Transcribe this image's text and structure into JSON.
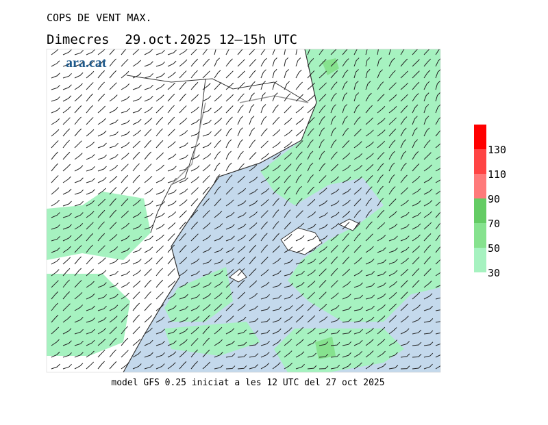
{
  "header": {
    "title": "COPS DE VENT MAX.",
    "subtitle": "Dimecres  29.oct.2025 12–15h UTC",
    "logo": "ara.cat"
  },
  "legend": {
    "ticks": [
      30,
      50,
      70,
      90,
      110,
      130
    ],
    "colors": [
      "#a6f2c0",
      "#86e28e",
      "#64cc64",
      "#ff7a7a",
      "#ff4444",
      "#ff0000"
    ]
  },
  "footer": "model GFS 0.25 iniciat a les 12 UTC del 27 oct 2025"
}
